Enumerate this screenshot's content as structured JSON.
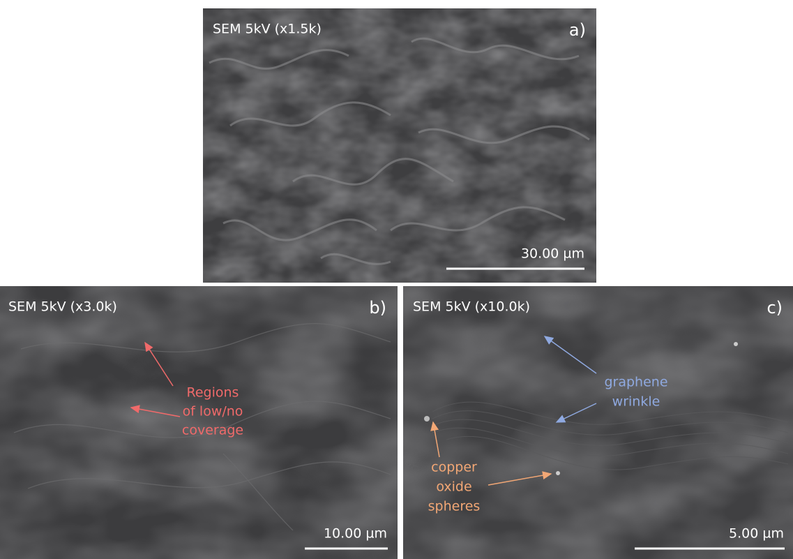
{
  "panels": [
    {
      "caption": "SEM 5kV (x1.5k)",
      "label": "a)",
      "scale_bar": "30.00 µm"
    },
    {
      "caption": "SEM 5kV (x3.0k)",
      "label": "b)",
      "scale_bar": "10.00 µm",
      "annotations": [
        {
          "lines": [
            "Regions",
            "of low/no",
            "coverage"
          ]
        }
      ]
    },
    {
      "caption": "SEM 5kV (x10.0k)",
      "label": "c)",
      "scale_bar": "5.00 µm",
      "annotations": [
        {
          "lines": [
            "graphene",
            "wrinkle"
          ]
        },
        {
          "lines": [
            "copper",
            "oxide",
            "spheres"
          ]
        }
      ]
    }
  ]
}
